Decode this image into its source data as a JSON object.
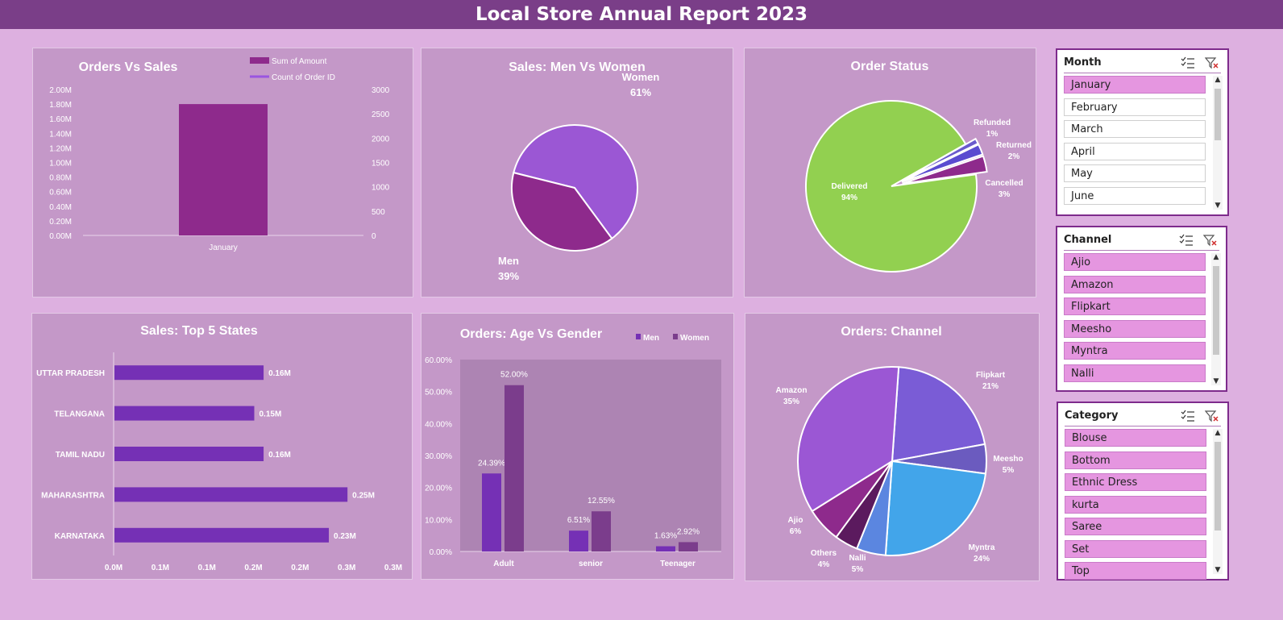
{
  "dashboard": {
    "title": "Local Store Annual Report 2023"
  },
  "colors": {
    "header": "#7a3e88",
    "background": "#ddb0e0",
    "card": "#c498c8",
    "bar_purple": "#8e2a8c",
    "line_purple": "#9a55e0",
    "bar_violet": "#7530b5",
    "women_col": "#7b3d8c",
    "delivered_green": "#92d050",
    "slicer_selected": "#e596e0"
  },
  "chart_data": [
    {
      "id": "orders_vs_sales",
      "type": "bar",
      "title": "Orders Vs Sales",
      "categories": [
        "January"
      ],
      "series": [
        {
          "name": "Sum of Amount",
          "values": [
            1800000
          ],
          "axis": "left"
        },
        {
          "name": "Count of Order ID",
          "values": [
            null
          ],
          "axis": "right",
          "type": "line"
        }
      ],
      "y_ticks": [
        "2.00M",
        "1.80M",
        "1.60M",
        "1.40M",
        "1.20M",
        "1.00M",
        "0.80M",
        "0.60M",
        "0.40M",
        "0.20M",
        "0.00M"
      ],
      "y2_ticks": [
        "3000",
        "2500",
        "2000",
        "1500",
        "1000",
        "500",
        "0"
      ],
      "ylim": [
        0,
        2000000
      ],
      "y2lim": [
        0,
        3000
      ],
      "legend": "top"
    },
    {
      "id": "sales_men_women",
      "type": "pie",
      "title": "Sales: Men Vs Women",
      "slices": [
        {
          "label": "Women",
          "value": 61,
          "pct": "61%",
          "color": "#9b57d4"
        },
        {
          "label": "Men",
          "value": 39,
          "pct": "39%",
          "color": "#8e2a8c"
        }
      ]
    },
    {
      "id": "order_status",
      "type": "pie",
      "title": "Order Status",
      "slices": [
        {
          "label": "Delivered",
          "value": 94,
          "pct": "94%",
          "color": "#92d050"
        },
        {
          "label": "Refunded",
          "value": 1,
          "pct": "1%",
          "color": "#6a5acd"
        },
        {
          "label": "Returned",
          "value": 2,
          "pct": "2%",
          "color": "#5a4bd0"
        },
        {
          "label": "Cancelled",
          "value": 3,
          "pct": "3%",
          "color": "#8e2a8c"
        }
      ]
    },
    {
      "id": "top5_states",
      "type": "bar",
      "orientation": "horizontal",
      "title": "Sales: Top 5 States",
      "categories": [
        "UTTAR PRADESH",
        "TELANGANA",
        "TAMIL NADU",
        "MAHARASHTRA",
        "KARNATAKA"
      ],
      "values": [
        0.16,
        0.15,
        0.16,
        0.25,
        0.23
      ],
      "value_labels": [
        "0.16M",
        "0.15M",
        "0.16M",
        "0.25M",
        "0.23M"
      ],
      "x_ticks": [
        "0.0M",
        "0.1M",
        "0.1M",
        "0.2M",
        "0.2M",
        "0.3M",
        "0.3M"
      ],
      "xlim": [
        0,
        0.3
      ]
    },
    {
      "id": "age_vs_gender",
      "type": "bar",
      "title": "Orders: Age Vs Gender",
      "categories": [
        "Adult",
        "senior",
        "Teenager"
      ],
      "series": [
        {
          "name": "Men",
          "values": [
            24.39,
            6.51,
            1.63
          ],
          "labels": [
            "24.39%",
            "6.51%",
            "1.63%"
          ]
        },
        {
          "name": "Women",
          "values": [
            52.0,
            12.55,
            2.92
          ],
          "labels": [
            "52.00%",
            "12.55%",
            "2.92%"
          ]
        }
      ],
      "y_ticks": [
        "60.00%",
        "50.00%",
        "40.00%",
        "30.00%",
        "20.00%",
        "10.00%",
        "0.00%"
      ],
      "ylim": [
        0,
        60
      ],
      "legend": "top-right"
    },
    {
      "id": "orders_channel",
      "type": "pie",
      "title": "Orders: Channel",
      "slices": [
        {
          "label": "Flipkart",
          "value": 21,
          "pct": "21%",
          "color": "#7a5cd6"
        },
        {
          "label": "Meesho",
          "value": 5,
          "pct": "5%",
          "color": "#6b5bbf"
        },
        {
          "label": "Myntra",
          "value": 24,
          "pct": "24%",
          "color": "#42a5ea"
        },
        {
          "label": "Nalli",
          "value": 5,
          "pct": "5%",
          "color": "#5b86e0"
        },
        {
          "label": "Others",
          "value": 4,
          "pct": "4%",
          "color": "#5b1a5e"
        },
        {
          "label": "Ajio",
          "value": 6,
          "pct": "6%",
          "color": "#8e2a8c"
        },
        {
          "label": "Amazon",
          "value": 35,
          "pct": "35%",
          "color": "#9b57d4"
        }
      ]
    }
  ],
  "slicers": [
    {
      "id": "month",
      "title": "Month",
      "items": [
        {
          "label": "January",
          "selected": true
        },
        {
          "label": "February",
          "selected": false
        },
        {
          "label": "March",
          "selected": false
        },
        {
          "label": "April",
          "selected": false
        },
        {
          "label": "May",
          "selected": false
        },
        {
          "label": "June",
          "selected": false
        }
      ]
    },
    {
      "id": "channel",
      "title": "Channel",
      "items": [
        {
          "label": "Ajio",
          "selected": true
        },
        {
          "label": "Amazon",
          "selected": true
        },
        {
          "label": "Flipkart",
          "selected": true
        },
        {
          "label": "Meesho",
          "selected": true
        },
        {
          "label": "Myntra",
          "selected": true
        },
        {
          "label": "Nalli",
          "selected": true
        }
      ]
    },
    {
      "id": "category",
      "title": "Category",
      "items": [
        {
          "label": "Blouse",
          "selected": true
        },
        {
          "label": "Bottom",
          "selected": true
        },
        {
          "label": "Ethnic Dress",
          "selected": true
        },
        {
          "label": "kurta",
          "selected": true
        },
        {
          "label": "Saree",
          "selected": true
        },
        {
          "label": "Set",
          "selected": true
        },
        {
          "label": "Top",
          "selected": true
        }
      ]
    }
  ]
}
